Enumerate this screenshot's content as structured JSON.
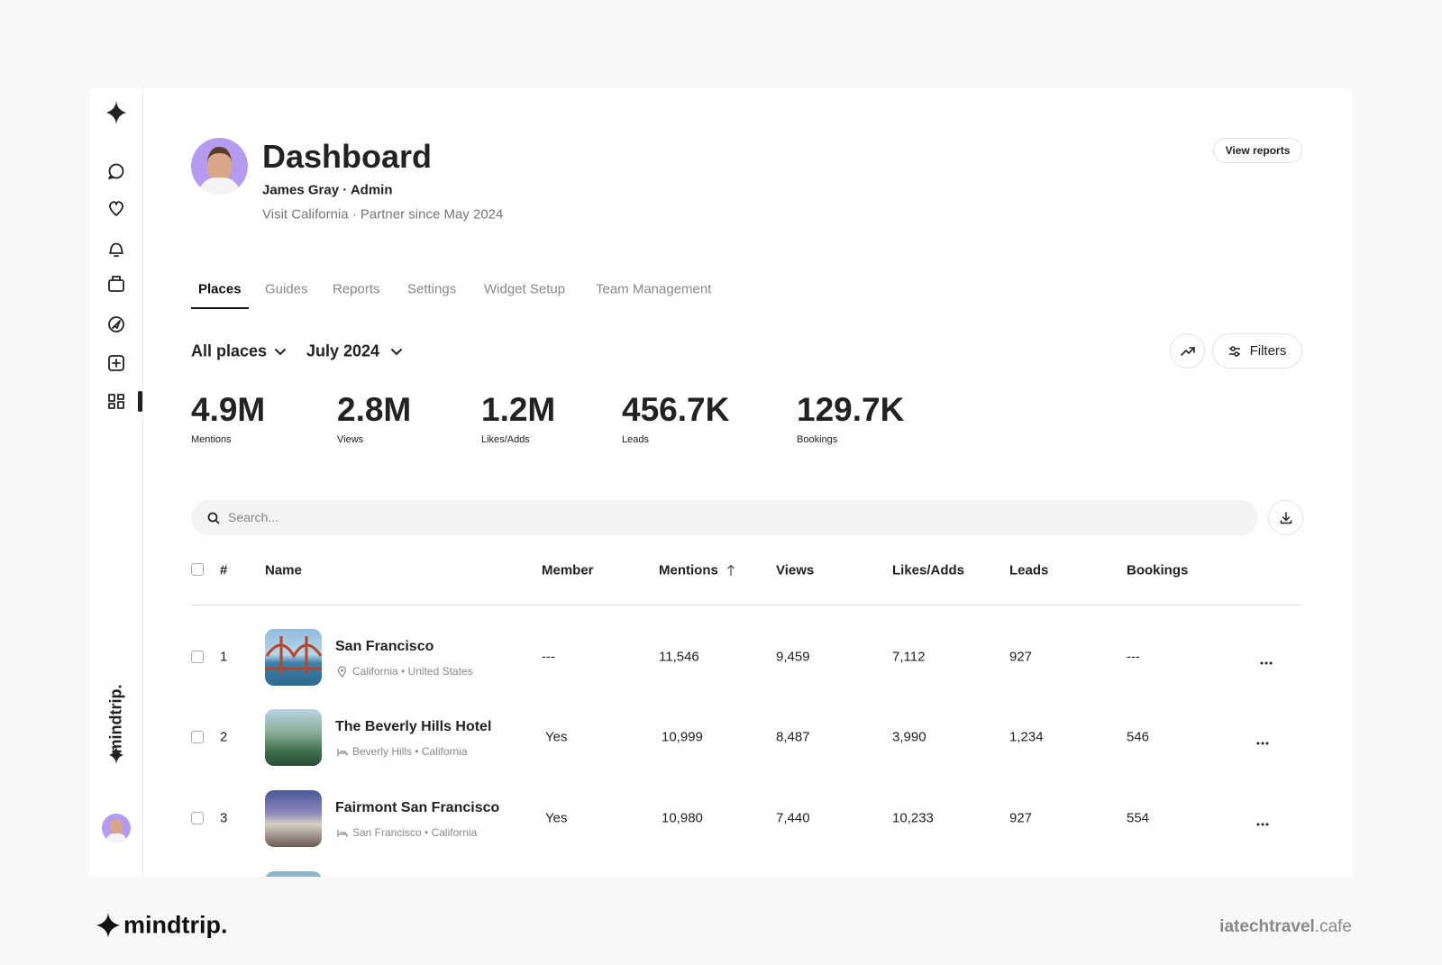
{
  "header": {
    "title": "Dashboard",
    "user": "James Gray · Admin",
    "subtitle": "Visit California · Partner since May 2024",
    "view_reports": "View reports"
  },
  "tabs": [
    "Places",
    "Guides",
    "Reports",
    "Settings",
    "Widget Setup",
    "Team Management"
  ],
  "filters": {
    "place": "All places",
    "month": "July 2024",
    "filters_button": "Filters"
  },
  "stats": [
    {
      "value": "4.9M",
      "label": "Mentions"
    },
    {
      "value": "2.8M",
      "label": "Views"
    },
    {
      "value": "1.2M",
      "label": "Likes/Adds"
    },
    {
      "value": "456.7K",
      "label": "Leads"
    },
    {
      "value": "129.7K",
      "label": "Bookings"
    }
  ],
  "search": {
    "placeholder": "Search..."
  },
  "table": {
    "columns": [
      "#",
      "Name",
      "Member",
      "Mentions",
      "Views",
      "Likes/Adds",
      "Leads",
      "Bookings"
    ],
    "rows": [
      {
        "index": "1",
        "name": "San Francisco",
        "location": "California • United States",
        "member": "---",
        "mentions": "11,546",
        "views": "9,459",
        "likes": "7,112",
        "leads": "927",
        "bookings": "---"
      },
      {
        "index": "2",
        "name": "The Beverly Hills Hotel",
        "location": "Beverly Hills • California",
        "member": "Yes",
        "mentions": "10,999",
        "views": "8,487",
        "likes": "3,990",
        "leads": "1,234",
        "bookings": "546"
      },
      {
        "index": "3",
        "name": "Fairmont San Francisco",
        "location": "San Francisco • California",
        "member": "Yes",
        "mentions": "10,980",
        "views": "7,440",
        "likes": "10,233",
        "leads": "927",
        "bookings": "554"
      }
    ]
  },
  "brand": {
    "sidebar_logo": "mindtrip.",
    "footer_logo": "mindtrip."
  },
  "watermark": {
    "site": "iatechtravel",
    "tld": ".cafe"
  }
}
